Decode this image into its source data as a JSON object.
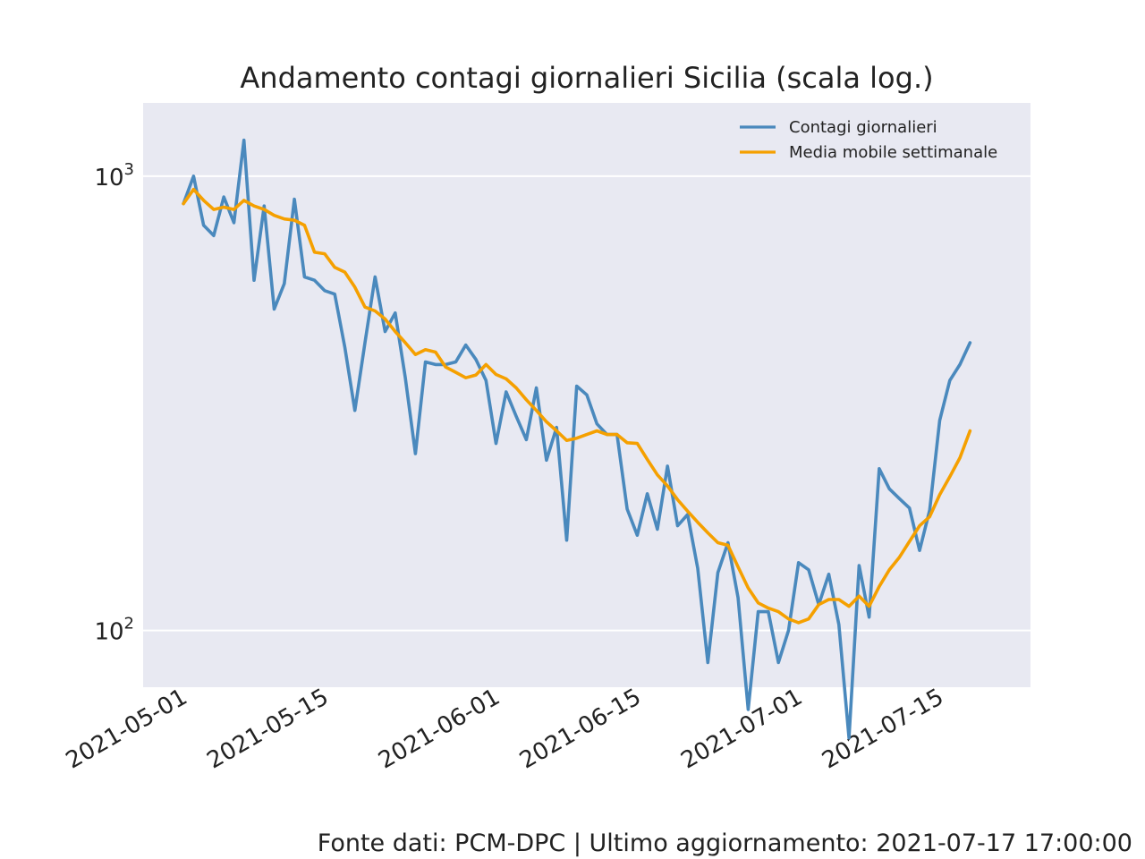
{
  "chart_data": {
    "type": "line",
    "title": "Andamento contagi giornalieri Sicilia (scala log.)",
    "xlabel": "",
    "ylabel": "",
    "yscale": "log",
    "ylim": [
      75,
      1450
    ],
    "xlim": [
      "2021-04-27",
      "2021-07-24"
    ],
    "grid": true,
    "legend_position": "top-right",
    "x_ticks": [
      "2021-05-01",
      "2021-05-15",
      "2021-06-01",
      "2021-06-15",
      "2021-07-01",
      "2021-07-15"
    ],
    "y_ticks": [
      {
        "value": 100,
        "base": "10",
        "exp": "2"
      },
      {
        "value": 1000,
        "base": "10",
        "exp": "3"
      }
    ],
    "start_date": "2021-05-01",
    "series": [
      {
        "name": "Contagi giornalieri",
        "color": "#4a89bd",
        "values": [
          870,
          1000,
          780,
          740,
          900,
          790,
          1200,
          590,
          860,
          510,
          580,
          890,
          600,
          590,
          560,
          550,
          420,
          305,
          430,
          600,
          455,
          500,
          360,
          245,
          390,
          385,
          385,
          390,
          425,
          395,
          355,
          258,
          335,
          296,
          263,
          342,
          237,
          280,
          158,
          345,
          330,
          285,
          270,
          270,
          185,
          162,
          200,
          167,
          230,
          170,
          180,
          137,
          85,
          134,
          156,
          118,
          67,
          110,
          110,
          85,
          100,
          141,
          136,
          114,
          133,
          103,
          58,
          139,
          107,
          227,
          205,
          195,
          186,
          150,
          184,
          290,
          355,
          385,
          430
        ]
      },
      {
        "name": "Media mobile settimanale",
        "color": "#f5a000",
        "values": [
          870,
          935,
          885,
          845,
          855,
          845,
          885,
          860,
          845,
          820,
          805,
          800,
          780,
          680,
          675,
          630,
          615,
          570,
          515,
          505,
          485,
          455,
          430,
          405,
          415,
          410,
          380,
          370,
          360,
          365,
          385,
          366,
          358,
          342,
          322,
          305,
          288,
          275,
          262,
          265,
          270,
          275,
          270,
          270,
          259,
          258,
          238,
          220,
          208,
          194,
          183,
          173,
          164,
          156,
          154,
          138,
          124,
          115,
          112,
          110,
          106,
          104,
          106,
          114,
          117,
          117,
          113,
          119,
          113,
          125,
          136,
          145,
          157,
          170,
          178,
          199,
          218,
          240,
          275
        ]
      }
    ]
  },
  "footer": "Fonte dati: PCM-DPC | Ultimo aggiornamento: 2021-07-17 17:00:00"
}
